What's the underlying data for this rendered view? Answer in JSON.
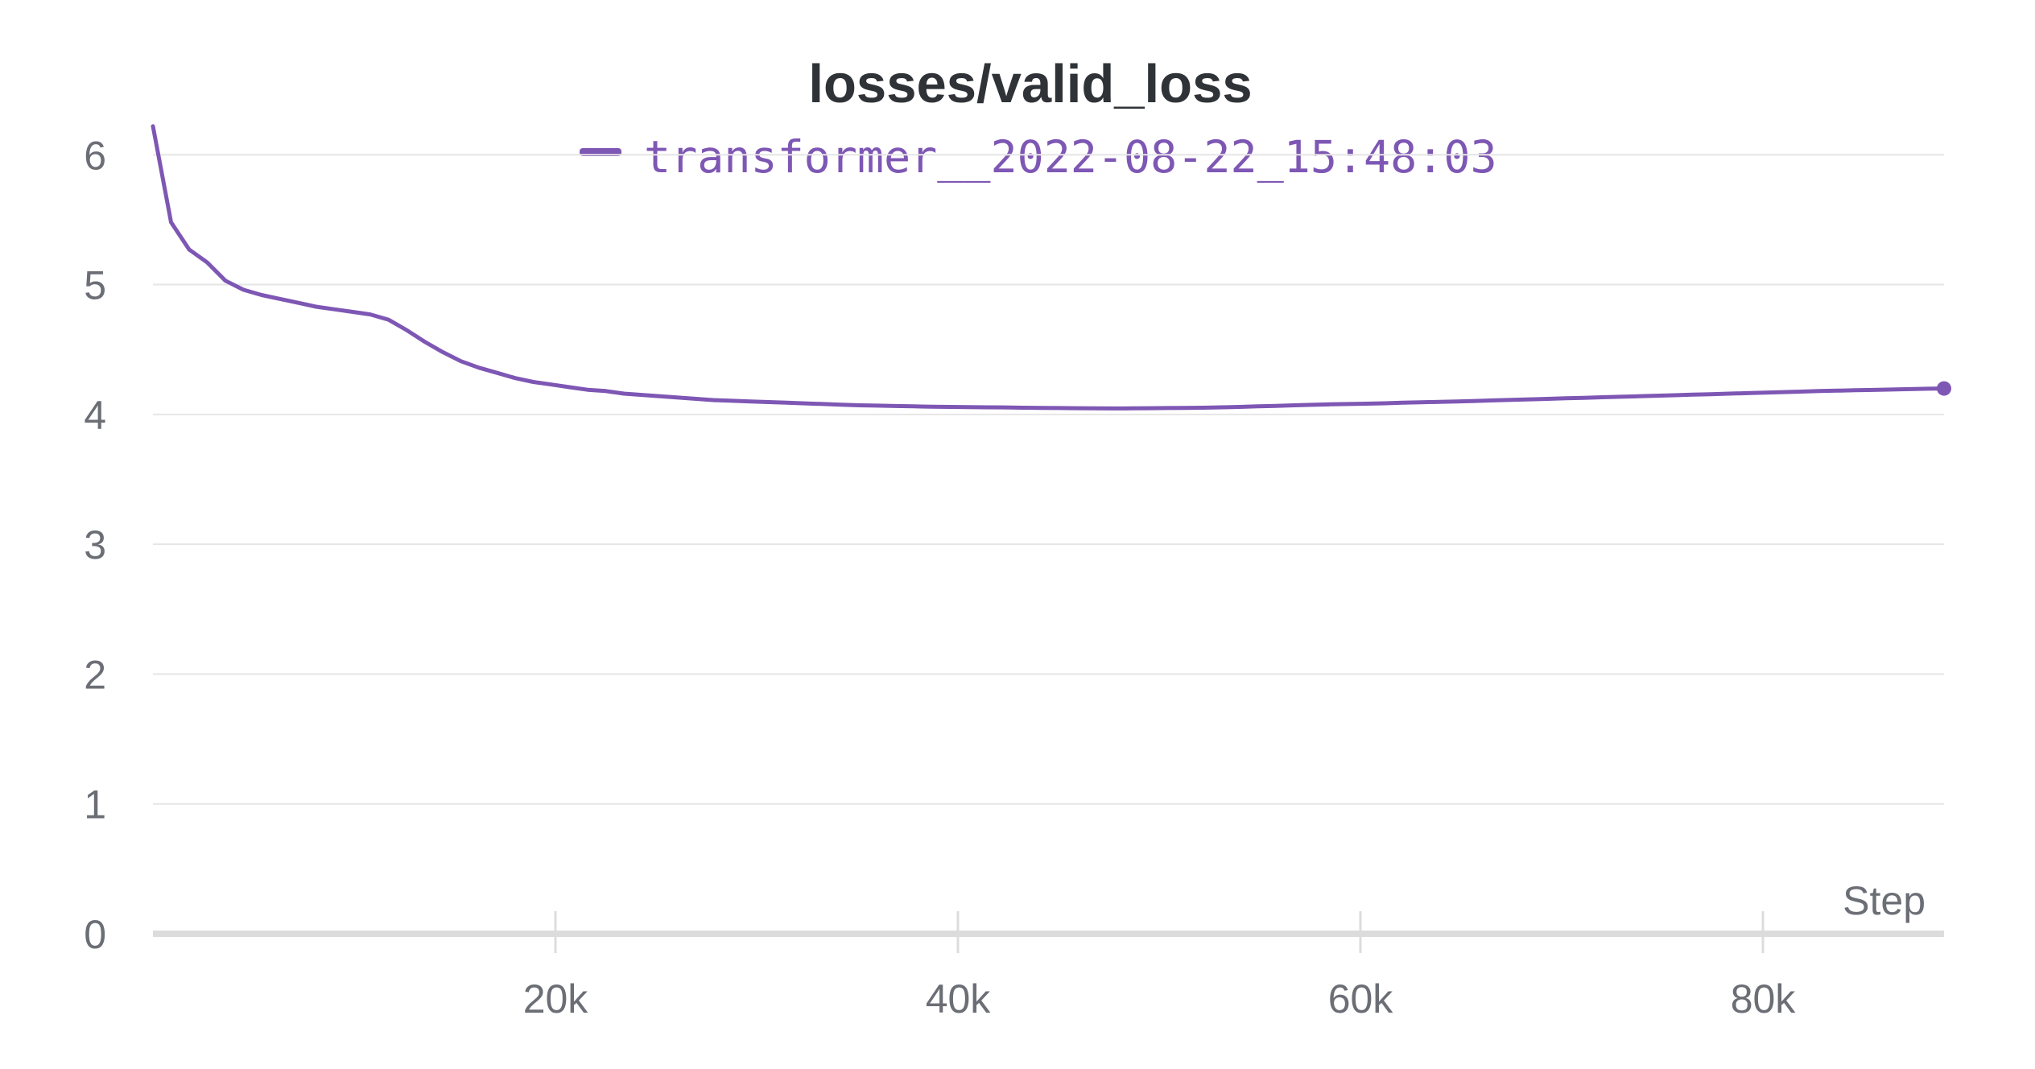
{
  "colors": {
    "series": "#7e57b4",
    "grid": "#e6e6e6",
    "axis": "#dcdcdc",
    "text": "#6b6e75",
    "title": "#2f3337"
  },
  "chart_data": {
    "type": "line",
    "title": "losses/valid_loss",
    "xlabel": "Step",
    "ylabel": "",
    "xlim": [
      0,
      89000
    ],
    "ylim": [
      0,
      6.2
    ],
    "x_ticks": [
      20000,
      40000,
      60000,
      80000
    ],
    "x_tick_labels": [
      "20k",
      "40k",
      "60k",
      "80k"
    ],
    "y_ticks": [
      0,
      1,
      2,
      3,
      4,
      5,
      6
    ],
    "y_tick_labels": [
      "0",
      "1",
      "2",
      "3",
      "4",
      "5",
      "6"
    ],
    "grid": "horizontal",
    "legend_position": "top-center",
    "series": [
      {
        "name": "transformer__2022-08-22_15:48:03",
        "color": "#7e57b4",
        "x": [
          0,
          900,
          1800,
          2700,
          3600,
          4500,
          5400,
          6300,
          7200,
          8100,
          9000,
          9900,
          10800,
          11700,
          12600,
          13500,
          14400,
          15300,
          16200,
          17100,
          18000,
          18900,
          19800,
          20700,
          21600,
          22500,
          23400,
          24300,
          25200,
          26100,
          27000,
          27900,
          28800,
          29700,
          30600,
          31500,
          32400,
          33300,
          34200,
          35100,
          36000,
          36900,
          37800,
          38700,
          39600,
          40500,
          41400,
          42300,
          43200,
          44100,
          45000,
          45900,
          46800,
          47700,
          48600,
          49500,
          50400,
          51300,
          52200,
          53100,
          54000,
          54900,
          55800,
          56700,
          57600,
          58500,
          59400,
          60300,
          61200,
          62100,
          63000,
          63900,
          64800,
          65700,
          66600,
          67500,
          68400,
          69300,
          70200,
          71100,
          72000,
          72900,
          73800,
          74700,
          75600,
          76500,
          77400,
          78300,
          79200,
          80100,
          81000,
          81900,
          82800,
          83700,
          84600,
          85500,
          86400,
          87300,
          88200,
          89000
        ],
        "values": [
          6.22,
          5.48,
          5.27,
          5.17,
          5.03,
          4.96,
          4.92,
          4.89,
          4.86,
          4.83,
          4.81,
          4.79,
          4.77,
          4.73,
          4.65,
          4.56,
          4.48,
          4.41,
          4.36,
          4.32,
          4.28,
          4.25,
          4.23,
          4.21,
          4.19,
          4.18,
          4.16,
          4.15,
          4.14,
          4.13,
          4.12,
          4.11,
          4.105,
          4.1,
          4.095,
          4.09,
          4.085,
          4.08,
          4.075,
          4.07,
          4.068,
          4.065,
          4.062,
          4.06,
          4.058,
          4.056,
          4.055,
          4.054,
          4.052,
          4.05,
          4.049,
          4.048,
          4.047,
          4.046,
          4.047,
          4.048,
          4.049,
          4.05,
          4.052,
          4.055,
          4.058,
          4.062,
          4.066,
          4.07,
          4.074,
          4.078,
          4.08,
          4.083,
          4.086,
          4.09,
          4.093,
          4.097,
          4.1,
          4.104,
          4.108,
          4.112,
          4.116,
          4.12,
          4.124,
          4.128,
          4.132,
          4.136,
          4.14,
          4.144,
          4.148,
          4.152,
          4.156,
          4.16,
          4.164,
          4.168,
          4.172,
          4.176,
          4.18,
          4.183,
          4.186,
          4.189,
          4.192,
          4.195,
          4.198,
          4.2
        ]
      }
    ]
  }
}
